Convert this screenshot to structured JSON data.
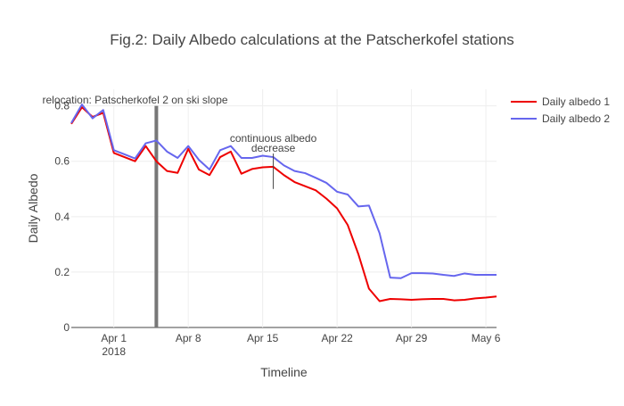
{
  "chart_data": {
    "type": "line",
    "title": "Fig.2: Daily Albedo calculations at the Patscherkofel stations",
    "xlabel": "Timeline",
    "ylabel": "Daily Albedo",
    "x_start_date": "2018-03-28",
    "x_range": [
      "2018-03-28",
      "2018-05-07"
    ],
    "ylim": [
      0,
      0.86
    ],
    "grid": true,
    "legend_position": "top-right",
    "x_ticks": [
      {
        "date": "2018-04-01",
        "label": "Apr 1",
        "sublabel": "2018"
      },
      {
        "date": "2018-04-08",
        "label": "Apr 8",
        "sublabel": ""
      },
      {
        "date": "2018-04-15",
        "label": "Apr 15",
        "sublabel": ""
      },
      {
        "date": "2018-04-22",
        "label": "Apr 22",
        "sublabel": ""
      },
      {
        "date": "2018-04-29",
        "label": "Apr 29",
        "sublabel": ""
      },
      {
        "date": "2018-05-06",
        "label": "May 6",
        "sublabel": ""
      }
    ],
    "y_ticks": [
      {
        "value": 0,
        "label": "0"
      },
      {
        "value": 0.2,
        "label": "0.2"
      },
      {
        "value": 0.4,
        "label": "0.4"
      },
      {
        "value": 0.6,
        "label": "0.6"
      },
      {
        "value": 0.8,
        "label": "0.8"
      }
    ],
    "series": [
      {
        "name": "Daily albedo 1",
        "color": "#ee0000",
        "points": [
          [
            "2018-03-28",
            0.735
          ],
          [
            "2018-03-29",
            0.795
          ],
          [
            "2018-03-30",
            0.76
          ],
          [
            "2018-03-31",
            0.775
          ],
          [
            "2018-04-01",
            0.63
          ],
          [
            "2018-04-02",
            0.615
          ],
          [
            "2018-04-03",
            0.6
          ],
          [
            "2018-04-04",
            0.655
          ],
          [
            "2018-04-05",
            0.6
          ],
          [
            "2018-04-06",
            0.565
          ],
          [
            "2018-04-07",
            0.558
          ],
          [
            "2018-04-08",
            0.645
          ],
          [
            "2018-04-09",
            0.57
          ],
          [
            "2018-04-10",
            0.55
          ],
          [
            "2018-04-11",
            0.615
          ],
          [
            "2018-04-12",
            0.635
          ],
          [
            "2018-04-13",
            0.555
          ],
          [
            "2018-04-14",
            0.572
          ],
          [
            "2018-04-15",
            0.578
          ],
          [
            "2018-04-16",
            0.58
          ],
          [
            "2018-04-17",
            0.55
          ],
          [
            "2018-04-18",
            0.525
          ],
          [
            "2018-04-19",
            0.51
          ],
          [
            "2018-04-20",
            0.495
          ],
          [
            "2018-04-21",
            0.465
          ],
          [
            "2018-04-22",
            0.43
          ],
          [
            "2018-04-23",
            0.37
          ],
          [
            "2018-04-24",
            0.265
          ],
          [
            "2018-04-25",
            0.14
          ],
          [
            "2018-04-26",
            0.095
          ],
          [
            "2018-04-27",
            0.103
          ],
          [
            "2018-04-28",
            0.102
          ],
          [
            "2018-04-29",
            0.1
          ],
          [
            "2018-04-30",
            0.102
          ],
          [
            "2018-05-01",
            0.103
          ],
          [
            "2018-05-02",
            0.103
          ],
          [
            "2018-05-03",
            0.098
          ],
          [
            "2018-05-04",
            0.1
          ],
          [
            "2018-05-05",
            0.105
          ],
          [
            "2018-05-06",
            0.108
          ],
          [
            "2018-05-07",
            0.112
          ]
        ]
      },
      {
        "name": "Daily albedo 2",
        "color": "#6666ee",
        "points": [
          [
            "2018-03-28",
            0.738
          ],
          [
            "2018-03-29",
            0.805
          ],
          [
            "2018-03-30",
            0.755
          ],
          [
            "2018-03-31",
            0.785
          ],
          [
            "2018-04-01",
            0.64
          ],
          [
            "2018-04-02",
            0.625
          ],
          [
            "2018-04-03",
            0.61
          ],
          [
            "2018-04-04",
            0.665
          ],
          [
            "2018-04-05",
            0.675
          ],
          [
            "2018-04-06",
            0.635
          ],
          [
            "2018-04-07",
            0.612
          ],
          [
            "2018-04-08",
            0.655
          ],
          [
            "2018-04-09",
            0.605
          ],
          [
            "2018-04-10",
            0.57
          ],
          [
            "2018-04-11",
            0.64
          ],
          [
            "2018-04-12",
            0.655
          ],
          [
            "2018-04-13",
            0.612
          ],
          [
            "2018-04-14",
            0.612
          ],
          [
            "2018-04-15",
            0.62
          ],
          [
            "2018-04-16",
            0.615
          ],
          [
            "2018-04-17",
            0.585
          ],
          [
            "2018-04-18",
            0.565
          ],
          [
            "2018-04-19",
            0.557
          ],
          [
            "2018-04-20",
            0.54
          ],
          [
            "2018-04-21",
            0.522
          ],
          [
            "2018-04-22",
            0.49
          ],
          [
            "2018-04-23",
            0.48
          ],
          [
            "2018-04-24",
            0.437
          ],
          [
            "2018-04-25",
            0.44
          ],
          [
            "2018-04-26",
            0.34
          ],
          [
            "2018-04-27",
            0.18
          ],
          [
            "2018-04-28",
            0.178
          ],
          [
            "2018-04-29",
            0.196
          ],
          [
            "2018-04-30",
            0.196
          ],
          [
            "2018-05-01",
            0.195
          ],
          [
            "2018-05-02",
            0.19
          ],
          [
            "2018-05-03",
            0.186
          ],
          [
            "2018-05-04",
            0.195
          ],
          [
            "2018-05-05",
            0.19
          ],
          [
            "2018-05-06",
            0.19
          ],
          [
            "2018-05-07",
            0.19
          ]
        ]
      }
    ],
    "vertical_lines": [
      {
        "date": "2018-04-05",
        "y_from": 0,
        "y_to": 0.8,
        "color": "#777777",
        "width": 4
      }
    ],
    "annotations": [
      {
        "lines": [
          "relocation: Patscherkofel 2 on ski slope"
        ],
        "anchor_date": "2018-04-03",
        "anchor_y": 0.808,
        "color": "#444444"
      },
      {
        "lines": [
          "continuous albedo",
          "decrease"
        ],
        "anchor_date": "2018-04-16",
        "anchor_y": 0.67,
        "arrow_from_y": 0.628,
        "arrow_to_y": 0.5,
        "color": "#444444"
      }
    ]
  }
}
